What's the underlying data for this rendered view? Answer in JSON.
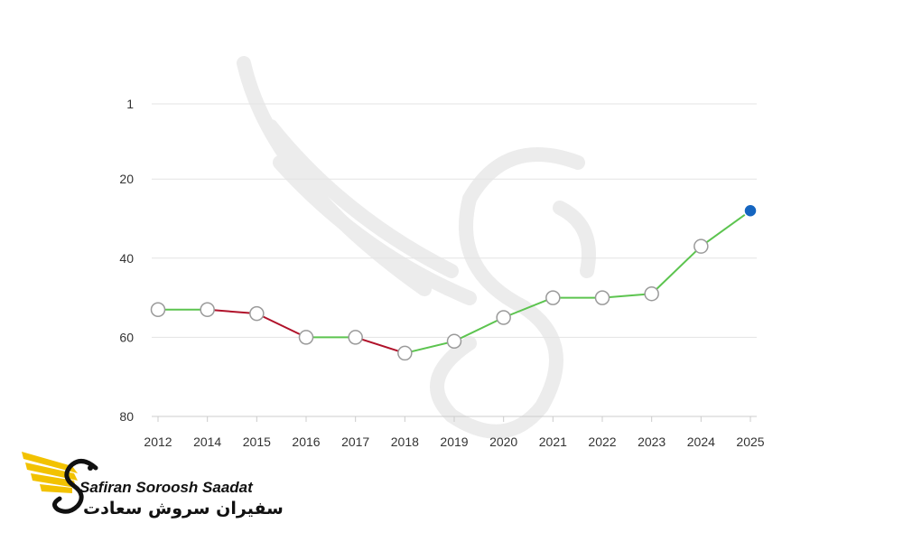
{
  "chart_data": {
    "type": "line",
    "title": "",
    "xlabel": "",
    "ylabel": "",
    "y_inverted": true,
    "ylim": [
      1,
      80
    ],
    "yticks": [
      1,
      20,
      40,
      60,
      80
    ],
    "grid": "horizontal",
    "categories": [
      "2012",
      "2014",
      "2015",
      "2016",
      "2017",
      "2018",
      "2019",
      "2020",
      "2021",
      "2022",
      "2023",
      "2024",
      "2025"
    ],
    "values": [
      53,
      53,
      54,
      60,
      60,
      64,
      61,
      55,
      50,
      50,
      49,
      37,
      28
    ],
    "colors": {
      "rise": "#5cc44f",
      "fall": "#b0122a",
      "grid": "#e3e3e3",
      "axis": "#cccccc",
      "marker_fill": "#ffffff",
      "marker_stroke": "#9a9a9a",
      "last_marker": "#1565c0"
    }
  },
  "logo": {
    "name_en": "Safiran Soroosh Saadat",
    "name_fa": "سفیران سروش سعادت",
    "colors": {
      "wing": "#f2c200",
      "ink": "#111111"
    }
  }
}
